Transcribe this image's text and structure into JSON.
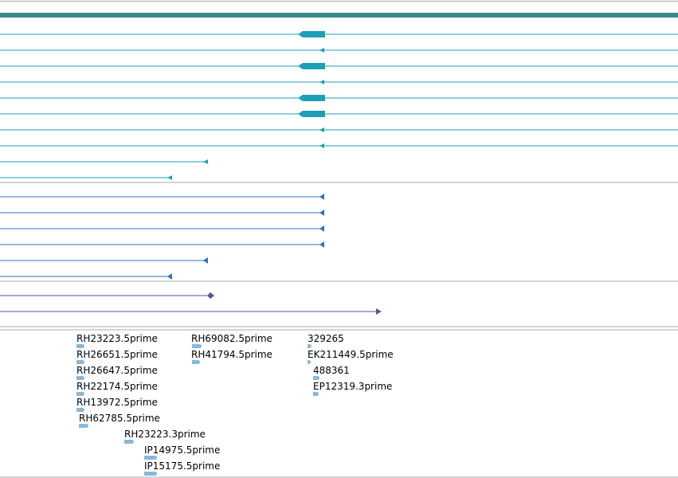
{
  "colors": {
    "gene_track": "#3a8a8a",
    "transcript_teal": "#1ba0b8",
    "transcript_blue": "#2e73b8",
    "transcript_purple": "#6b4aa0",
    "est": "#85b9dc",
    "divider": "#a9a9a9"
  },
  "icons": {
    "left_arrow": "left-arrowhead-icon",
    "right_arrow": "right-arrowhead-icon"
  },
  "est_labels": {
    "col1": [
      "RH23223.5prime",
      "RH26651.5prime",
      "RH26647.5prime",
      "RH22174.5prime",
      "RH13972.5prime",
      "RH62785.5prime"
    ],
    "col1b": [
      "RH23223.3prime",
      "IP14975.5prime",
      "IP15175.5prime"
    ],
    "col2": [
      "RH69082.5prime",
      "RH41794.5prime"
    ],
    "col3": [
      "329265",
      "EK211449.5prime",
      "488361",
      "EP12319.3prime"
    ]
  }
}
